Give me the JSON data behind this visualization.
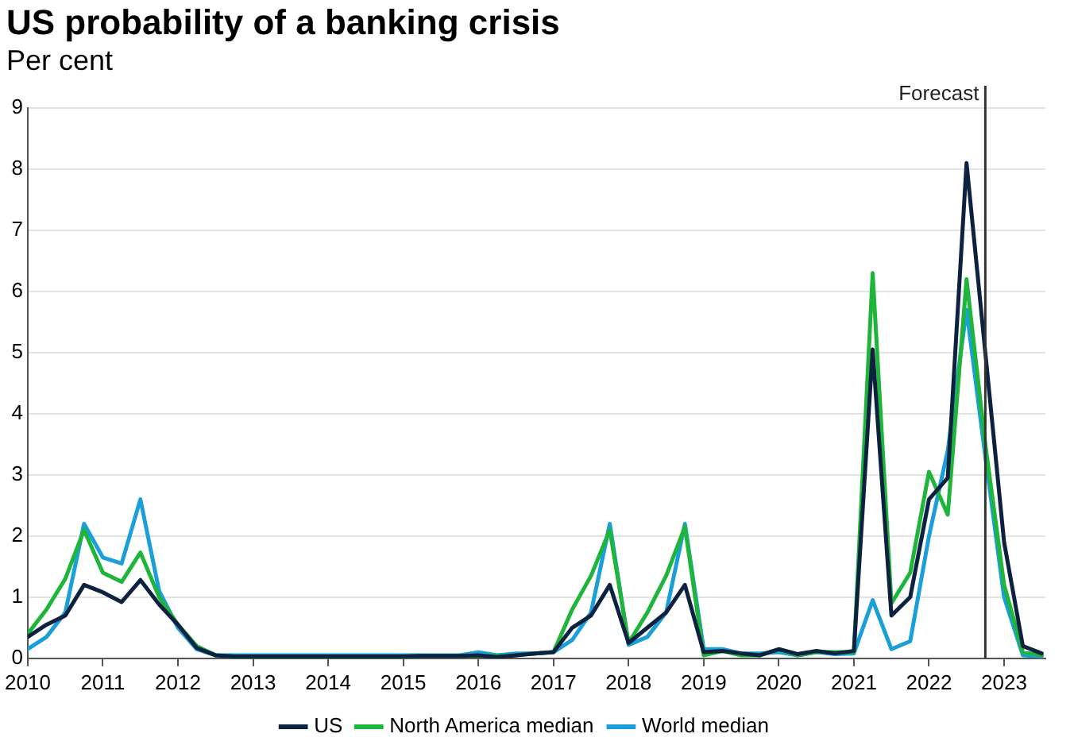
{
  "chart_data": {
    "type": "line",
    "title": "US probability of a banking crisis",
    "ylabel": "Per cent",
    "x": [
      2010,
      2010.25,
      2010.5,
      2010.75,
      2011,
      2011.25,
      2011.5,
      2011.75,
      2012,
      2012.25,
      2012.5,
      2012.75,
      2013,
      2013.25,
      2013.5,
      2013.75,
      2014,
      2014.25,
      2014.5,
      2014.75,
      2015,
      2015.25,
      2015.5,
      2015.75,
      2016,
      2016.25,
      2016.5,
      2016.75,
      2017,
      2017.25,
      2017.5,
      2017.75,
      2018,
      2018.25,
      2018.5,
      2018.75,
      2019,
      2019.25,
      2019.5,
      2019.75,
      2020,
      2020.25,
      2020.5,
      2020.75,
      2021,
      2021.25,
      2021.5,
      2021.75,
      2022,
      2022.25,
      2022.5,
      2022.75,
      2023,
      2023.25,
      2023.5
    ],
    "series": [
      {
        "name": "US",
        "color": "#0d2240",
        "values": [
          0.35,
          0.55,
          0.7,
          1.2,
          1.08,
          0.92,
          1.28,
          0.88,
          0.55,
          0.17,
          0.05,
          0.03,
          0.03,
          0.03,
          0.03,
          0.03,
          0.03,
          0.03,
          0.03,
          0.03,
          0.03,
          0.04,
          0.04,
          0.04,
          0.05,
          0.02,
          0.05,
          0.08,
          0.1,
          0.5,
          0.7,
          1.2,
          0.25,
          0.5,
          0.75,
          1.2,
          0.1,
          0.12,
          0.08,
          0.05,
          0.15,
          0.07,
          0.12,
          0.08,
          0.12,
          5.05,
          0.7,
          1.0,
          2.6,
          2.95,
          8.1,
          5.0,
          1.9,
          0.2,
          0.08
        ]
      },
      {
        "name": "North America median",
        "color": "#1eb53a",
        "values": [
          0.4,
          0.8,
          1.3,
          2.1,
          1.4,
          1.25,
          1.73,
          1.0,
          0.55,
          0.2,
          0.05,
          0.03,
          0.03,
          0.03,
          0.03,
          0.03,
          0.03,
          0.03,
          0.03,
          0.03,
          0.03,
          0.04,
          0.04,
          0.04,
          0.04,
          0.04,
          0.05,
          0.08,
          0.1,
          0.8,
          1.35,
          2.1,
          0.25,
          0.75,
          1.35,
          2.15,
          0.05,
          0.12,
          0.05,
          0.05,
          0.15,
          0.05,
          0.1,
          0.1,
          0.1,
          6.3,
          0.9,
          1.4,
          3.05,
          2.35,
          6.2,
          3.5,
          1.2,
          0.1,
          0.05
        ]
      },
      {
        "name": "World median",
        "color": "#1a9fd9",
        "values": [
          0.15,
          0.35,
          0.75,
          2.2,
          1.65,
          1.55,
          2.6,
          1.1,
          0.5,
          0.15,
          0.05,
          0.05,
          0.05,
          0.05,
          0.05,
          0.05,
          0.05,
          0.05,
          0.05,
          0.05,
          0.05,
          0.05,
          0.05,
          0.05,
          0.1,
          0.05,
          0.08,
          0.08,
          0.1,
          0.3,
          0.75,
          2.2,
          0.22,
          0.35,
          0.75,
          2.2,
          0.15,
          0.15,
          0.08,
          0.08,
          0.1,
          0.05,
          0.1,
          0.07,
          0.08,
          0.95,
          0.15,
          0.28,
          2.0,
          3.4,
          5.7,
          3.3,
          1.0,
          0.05,
          0.03
        ]
      }
    ],
    "xlim": [
      2010,
      2023.55
    ],
    "xticks": [
      2010,
      2011,
      2012,
      2013,
      2014,
      2015,
      2016,
      2017,
      2018,
      2019,
      2020,
      2021,
      2022,
      2023
    ],
    "ylim": [
      0,
      9
    ],
    "yticks": [
      0,
      1,
      2,
      3,
      4,
      5,
      6,
      7,
      8,
      9
    ],
    "ref_lines": [
      {
        "axis": "x",
        "value": 2022.75,
        "label": "Forecast",
        "color": "#333333"
      }
    ],
    "grid": "y",
    "legend": "bottom",
    "marker": "none",
    "line_style": "solid"
  }
}
